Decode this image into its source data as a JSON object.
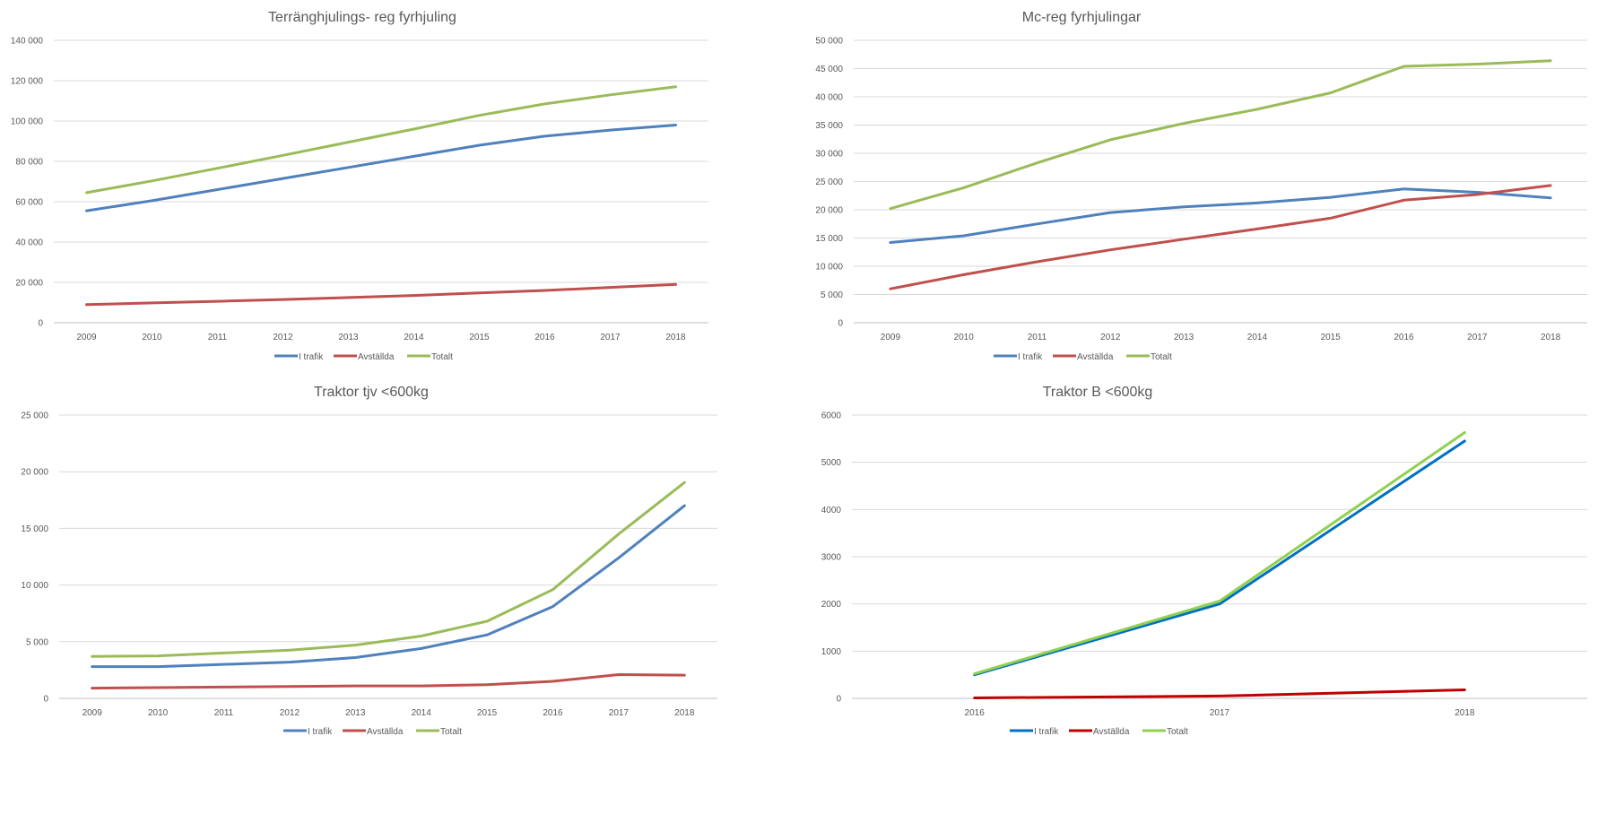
{
  "chart_data": [
    {
      "type": "line",
      "title": "Terränghjulings- reg fyrhjuling",
      "categories": [
        "2009",
        "2010",
        "2011",
        "2012",
        "2013",
        "2014",
        "2015",
        "2016",
        "2017",
        "2018"
      ],
      "ylim": [
        0,
        140000
      ],
      "yticks": [
        0,
        20000,
        40000,
        60000,
        80000,
        100000,
        120000,
        140000
      ],
      "ytick_labels": [
        "0",
        "20 000",
        "40 000",
        "60 000",
        "80 000",
        "100 000",
        "120 000",
        "140 000"
      ],
      "grid": true,
      "legend_position": "bottom",
      "series": [
        {
          "name": "I trafik",
          "color": "#4f81bd",
          "values": [
            55500,
            60500,
            66000,
            71500,
            77000,
            82500,
            88000,
            92500,
            95500,
            98000
          ]
        },
        {
          "name": "Avställda",
          "color": "#c0504d",
          "values": [
            9000,
            9800,
            10600,
            11500,
            12500,
            13500,
            14800,
            16000,
            17500,
            19000
          ]
        },
        {
          "name": "Totalt",
          "color": "#9bbb59",
          "values": [
            64500,
            70300,
            76600,
            83000,
            89500,
            96000,
            102800,
            108500,
            113000,
            117000
          ]
        }
      ]
    },
    {
      "type": "line",
      "title": "Mc-reg fyrhjulingar",
      "categories": [
        "2009",
        "2010",
        "2011",
        "2012",
        "2013",
        "2014",
        "2015",
        "2016",
        "2017",
        "2018"
      ],
      "ylim": [
        0,
        50000
      ],
      "yticks": [
        0,
        5000,
        10000,
        15000,
        20000,
        25000,
        30000,
        35000,
        40000,
        45000,
        50000
      ],
      "ytick_labels": [
        "0",
        "5 000",
        "10 000",
        "15 000",
        "20 000",
        "25 000",
        "30 000",
        "35 000",
        "40 000",
        "45 000",
        "50 000"
      ],
      "grid": true,
      "legend_position": "bottom",
      "series": [
        {
          "name": "I trafik",
          "color": "#4f81bd",
          "values": [
            14200,
            15400,
            17500,
            19500,
            20500,
            21200,
            22200,
            23700,
            23100,
            22100
          ]
        },
        {
          "name": "Avställda",
          "color": "#c0504d",
          "values": [
            6000,
            8500,
            10800,
            12900,
            14800,
            16600,
            18500,
            21700,
            22700,
            24300
          ]
        },
        {
          "name": "Totalt",
          "color": "#9bbb59",
          "values": [
            20200,
            23900,
            28300,
            32400,
            35300,
            37800,
            40700,
            45400,
            45800,
            46400
          ]
        }
      ]
    },
    {
      "type": "line",
      "title": "Traktor tjv <600kg",
      "categories": [
        "2009",
        "2010",
        "2011",
        "2012",
        "2013",
        "2014",
        "2015",
        "2016",
        "2017",
        "2018"
      ],
      "ylim": [
        0,
        25000
      ],
      "yticks": [
        0,
        5000,
        10000,
        15000,
        20000,
        25000
      ],
      "ytick_labels": [
        "0",
        "5 000",
        "10 000",
        "15 000",
        "20 000",
        "25 000"
      ],
      "grid": true,
      "legend_position": "bottom",
      "series": [
        {
          "name": "I trafik",
          "color": "#4f81bd",
          "values": [
            2800,
            2800,
            3000,
            3200,
            3600,
            4400,
            5600,
            8100,
            12400,
            17000
          ]
        },
        {
          "name": "Avställda",
          "color": "#c0504d",
          "values": [
            900,
            950,
            1000,
            1050,
            1100,
            1100,
            1200,
            1500,
            2100,
            2050
          ]
        },
        {
          "name": "Totalt",
          "color": "#9bbb59",
          "values": [
            3700,
            3750,
            4000,
            4250,
            4700,
            5500,
            6800,
            9600,
            14500,
            19050
          ]
        }
      ]
    },
    {
      "type": "line",
      "title": "Traktor B <600kg",
      "categories": [
        "2016",
        "2017",
        "2018"
      ],
      "ylim": [
        0,
        6000
      ],
      "yticks": [
        0,
        1000,
        2000,
        3000,
        4000,
        5000,
        6000
      ],
      "ytick_labels": [
        "0",
        "1000",
        "2000",
        "3000",
        "4000",
        "5000",
        "6000"
      ],
      "grid": true,
      "legend_position": "bottom",
      "series": [
        {
          "name": "I trafik",
          "color": "#0070c0",
          "values": [
            500,
            2000,
            5450
          ]
        },
        {
          "name": "Avställda",
          "color": "#c00000",
          "values": [
            10,
            50,
            180
          ]
        },
        {
          "name": "Totalt",
          "color": "#92d050",
          "values": [
            520,
            2060,
            5630
          ]
        }
      ]
    }
  ]
}
